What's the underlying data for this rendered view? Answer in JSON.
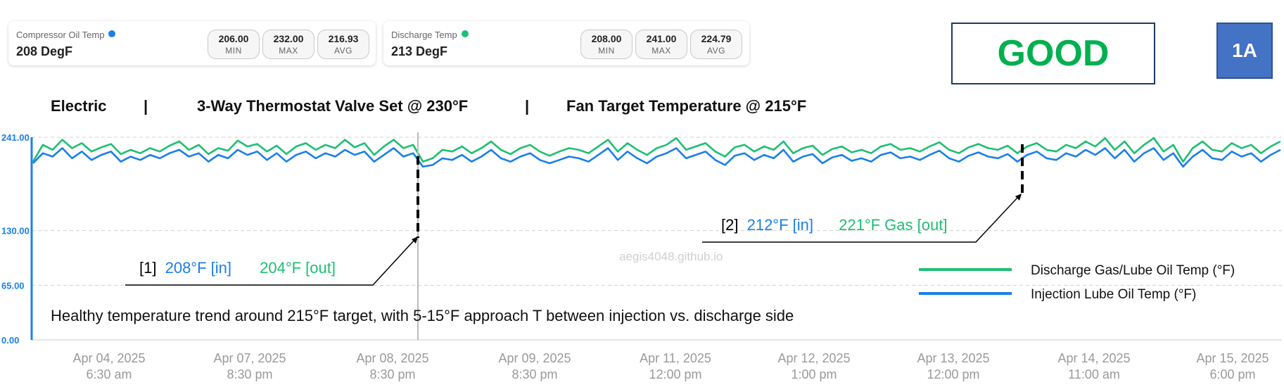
{
  "cards": [
    {
      "label": "Compressor Oil Temp",
      "value": "208 DegF",
      "dot_color": "#1a7fe8",
      "stats": [
        {
          "value": "206.00",
          "label": "MIN"
        },
        {
          "value": "232.00",
          "label": "MAX"
        },
        {
          "value": "216.93",
          "label": "AVG"
        }
      ]
    },
    {
      "label": "Discharge Temp",
      "value": "213 DegF",
      "dot_color": "#1dbf73",
      "stats": [
        {
          "value": "208.00",
          "label": "MIN"
        },
        {
          "value": "241.00",
          "label": "MAX"
        },
        {
          "value": "224.79",
          "label": "AVG"
        }
      ]
    }
  ],
  "status": "GOOD",
  "unit_tag": "1A",
  "header": {
    "part1": "Electric",
    "sep": "|",
    "part2": "3-Way Thermostat Valve Set @ 230°F",
    "part3": "Fan Target Temperature @ 215°F"
  },
  "colors": {
    "injection": "#1a7fe8",
    "discharge": "#1dbf73",
    "good": "#00b050",
    "axis": "#1a7fe8"
  },
  "chart_data": {
    "type": "line",
    "y_ticks": [
      "241.00",
      "130.00",
      "65.00",
      "0.00"
    ],
    "y_tick_values": [
      241,
      130,
      65,
      0
    ],
    "ylim": [
      0,
      241
    ],
    "x_ticks": [
      {
        "date": "Apr 04, 2025",
        "time": "6:30 am"
      },
      {
        "date": "Apr 07, 2025",
        "time": "8:30 pm"
      },
      {
        "date": "Apr 08, 2025",
        "time": "8:30 pm"
      },
      {
        "date": "Apr 09, 2025",
        "time": "8:30 pm"
      },
      {
        "date": "Apr 11, 2025",
        "time": "12:00 pm"
      },
      {
        "date": "Apr 12, 2025",
        "time": "1:00 pm"
      },
      {
        "date": "Apr 13, 2025",
        "time": "12:00 pm"
      },
      {
        "date": "Apr 14, 2025",
        "time": "11:00 am"
      },
      {
        "date": "Apr 15, 2025",
        "time": "6:00 pm"
      }
    ],
    "series": [
      {
        "name": "Discharge Gas/Lube Oil Temp (°F)",
        "color": "#1dbf73",
        "values": [
          212,
          232,
          226,
          238,
          228,
          234,
          224,
          229,
          233,
          221,
          226,
          222,
          228,
          224,
          231,
          236,
          226,
          232,
          221,
          228,
          225,
          237,
          230,
          233,
          224,
          231,
          221,
          230,
          234,
          226,
          232,
          228,
          238,
          229,
          234,
          220,
          230,
          238,
          228,
          232,
          212,
          216,
          226,
          224,
          230,
          222,
          228,
          236,
          226,
          221,
          228,
          232,
          224,
          219,
          224,
          228,
          226,
          222,
          230,
          238,
          224,
          234,
          226,
          220,
          228,
          232,
          240,
          226,
          230,
          234,
          224,
          218,
          229,
          232,
          224,
          230,
          226,
          236,
          222,
          228,
          231,
          220,
          227,
          230,
          223,
          226,
          222,
          230,
          233,
          226,
          228,
          224,
          230,
          235,
          226,
          222,
          229,
          233,
          228,
          226,
          231,
          222,
          230,
          234,
          226,
          224,
          232,
          228,
          236,
          230,
          240,
          226,
          236,
          222,
          232,
          240,
          224,
          232,
          212,
          228,
          236,
          226,
          224,
          234,
          228,
          232,
          222,
          230,
          236
        ]
      },
      {
        "name": "Injection Lube Oil Temp (°F)",
        "color": "#1a7fe8",
        "values": [
          210,
          222,
          218,
          228,
          216,
          224,
          214,
          220,
          224,
          212,
          218,
          214,
          220,
          216,
          222,
          226,
          218,
          222,
          212,
          220,
          216,
          226,
          220,
          224,
          214,
          222,
          212,
          220,
          224,
          216,
          222,
          218,
          226,
          220,
          224,
          212,
          220,
          228,
          218,
          222,
          206,
          208,
          216,
          214,
          220,
          212,
          218,
          226,
          216,
          212,
          218,
          222,
          214,
          210,
          214,
          218,
          216,
          212,
          220,
          228,
          214,
          224,
          216,
          210,
          218,
          222,
          228,
          216,
          220,
          224,
          214,
          208,
          219,
          222,
          214,
          220,
          216,
          226,
          212,
          218,
          221,
          210,
          217,
          220,
          213,
          216,
          212,
          220,
          223,
          216,
          218,
          214,
          220,
          225,
          216,
          212,
          219,
          223,
          218,
          216,
          221,
          212,
          220,
          224,
          216,
          214,
          222,
          218,
          226,
          220,
          228,
          216,
          226,
          212,
          222,
          228,
          214,
          222,
          206,
          218,
          226,
          216,
          214,
          224,
          218,
          222,
          212,
          220,
          226
        ]
      }
    ],
    "annotations": [
      {
        "prefix": "[1]",
        "in": "208°F [in]",
        "out": "204°F [out]"
      },
      {
        "prefix": "[2]",
        "in": "212°F [in]",
        "out": "221°F Gas [out]"
      }
    ],
    "note": "Healthy temperature trend around 215°F  target, with 5-15°F approach T between injection vs. discharge side",
    "watermark": "aegis4048.github.io"
  }
}
